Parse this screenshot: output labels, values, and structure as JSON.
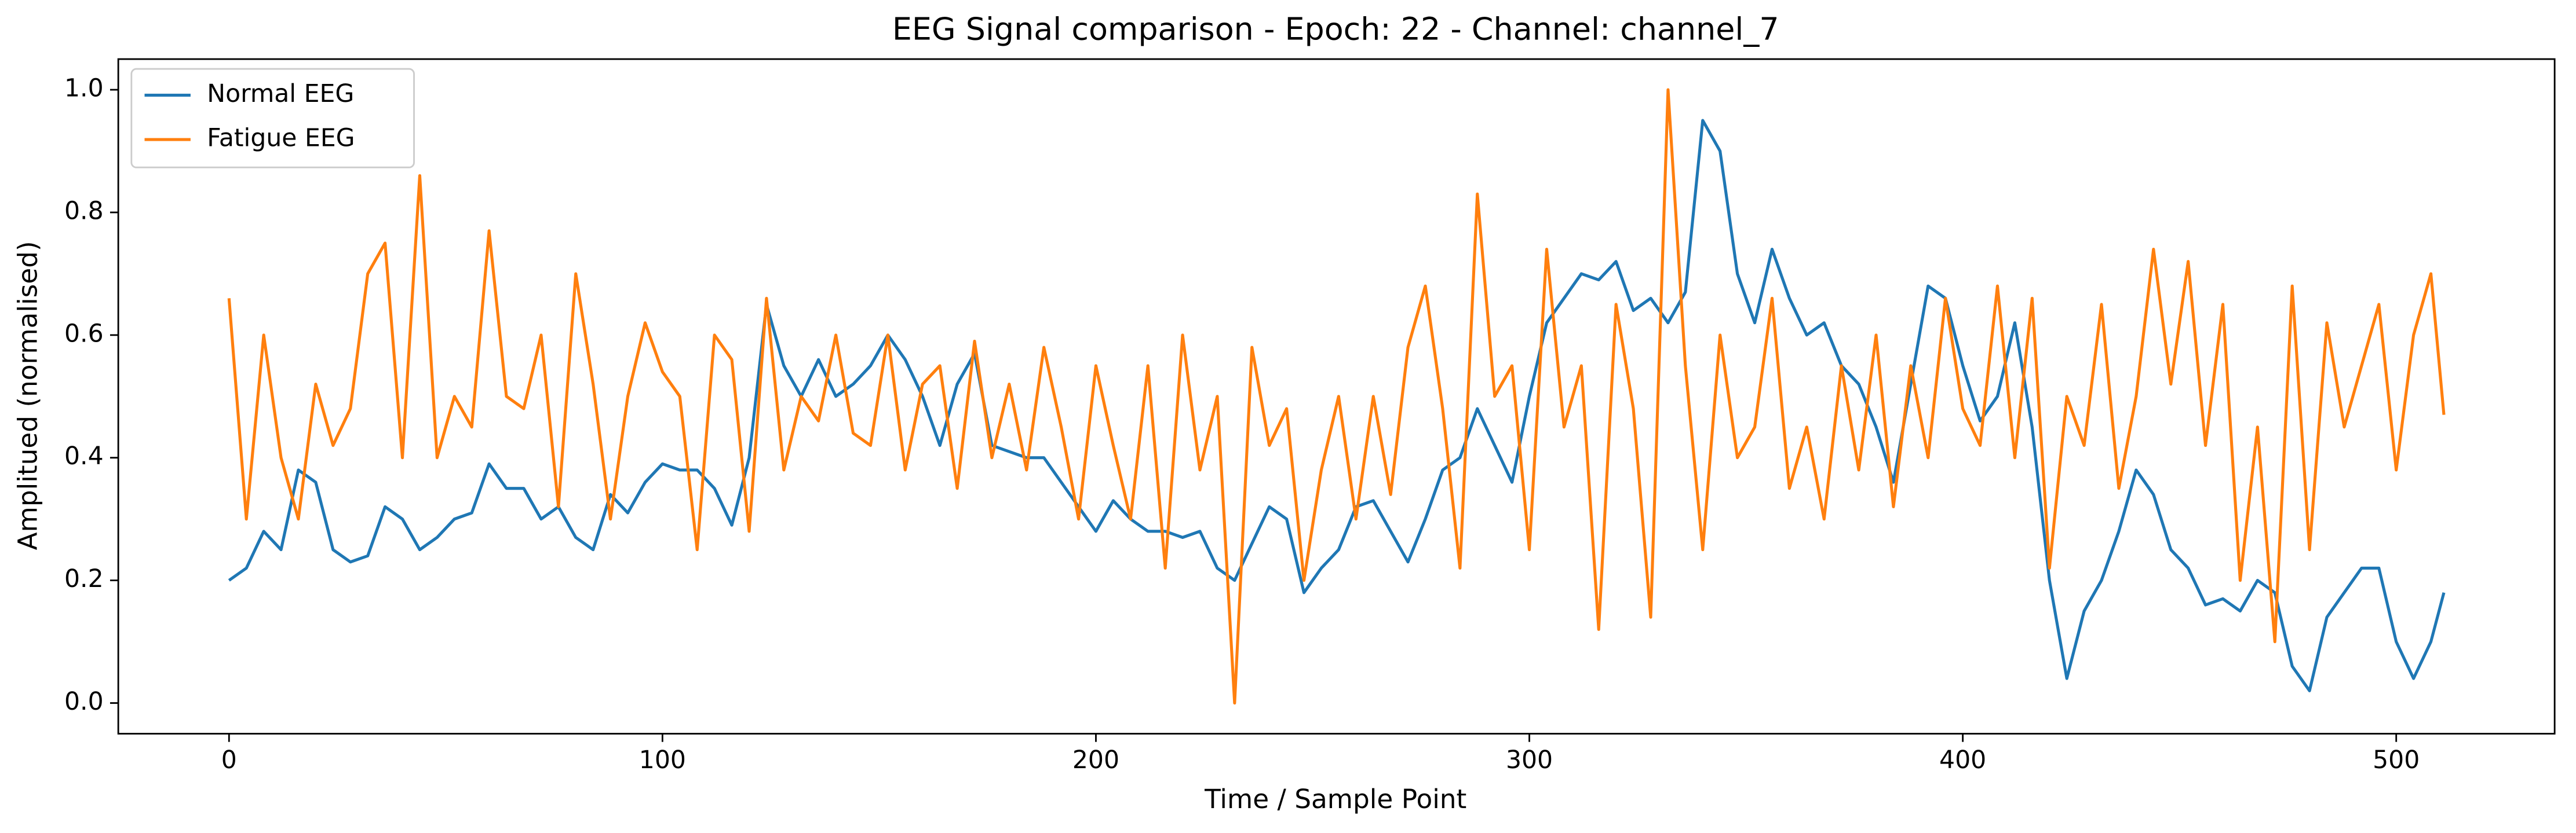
{
  "chart_data": {
    "type": "line",
    "title": "EEG Signal comparison - Epoch: 22 - Channel: channel_7",
    "x_label": "Time / Sample Point",
    "y_label": "Amplitued (normalised)",
    "x": [
      0,
      4,
      8,
      12,
      16,
      20,
      24,
      28,
      32,
      36,
      40,
      44,
      48,
      52,
      56,
      60,
      64,
      68,
      72,
      76,
      80,
      84,
      88,
      92,
      96,
      100,
      104,
      108,
      112,
      116,
      120,
      124,
      128,
      132,
      136,
      140,
      144,
      148,
      152,
      156,
      160,
      164,
      168,
      172,
      176,
      180,
      184,
      188,
      192,
      196,
      200,
      204,
      208,
      212,
      216,
      220,
      224,
      228,
      232,
      236,
      240,
      244,
      248,
      252,
      256,
      260,
      264,
      268,
      272,
      276,
      280,
      284,
      288,
      292,
      296,
      300,
      304,
      308,
      312,
      316,
      320,
      324,
      328,
      332,
      336,
      340,
      344,
      348,
      352,
      356,
      360,
      364,
      368,
      372,
      376,
      380,
      384,
      388,
      392,
      396,
      400,
      404,
      408,
      412,
      416,
      420,
      424,
      428,
      432,
      436,
      440,
      444,
      448,
      452,
      456,
      460,
      464,
      468,
      472,
      476,
      480,
      484,
      488,
      492,
      496,
      500,
      504,
      508,
      511
    ],
    "series": [
      {
        "name": "Normal EEG",
        "color": "#1f77b4",
        "values": [
          0.2,
          0.22,
          0.28,
          0.25,
          0.38,
          0.36,
          0.25,
          0.23,
          0.24,
          0.32,
          0.3,
          0.25,
          0.27,
          0.3,
          0.31,
          0.39,
          0.35,
          0.35,
          0.3,
          0.32,
          0.27,
          0.25,
          0.34,
          0.31,
          0.36,
          0.39,
          0.38,
          0.38,
          0.35,
          0.29,
          0.4,
          0.65,
          0.55,
          0.5,
          0.56,
          0.5,
          0.52,
          0.55,
          0.6,
          0.56,
          0.5,
          0.42,
          0.52,
          0.57,
          0.42,
          0.41,
          0.4,
          0.4,
          0.36,
          0.32,
          0.28,
          0.33,
          0.3,
          0.28,
          0.28,
          0.27,
          0.28,
          0.22,
          0.2,
          0.26,
          0.32,
          0.3,
          0.18,
          0.22,
          0.25,
          0.32,
          0.33,
          0.28,
          0.23,
          0.3,
          0.38,
          0.4,
          0.48,
          0.42,
          0.36,
          0.5,
          0.62,
          0.66,
          0.7,
          0.69,
          0.72,
          0.64,
          0.66,
          0.62,
          0.67,
          0.95,
          0.9,
          0.7,
          0.62,
          0.74,
          0.66,
          0.6,
          0.62,
          0.55,
          0.52,
          0.45,
          0.36,
          0.52,
          0.68,
          0.66,
          0.55,
          0.46,
          0.5,
          0.62,
          0.45,
          0.2,
          0.04,
          0.15,
          0.2,
          0.28,
          0.38,
          0.34,
          0.25,
          0.22,
          0.16,
          0.17,
          0.15,
          0.2,
          0.18,
          0.06,
          0.02,
          0.14,
          0.18,
          0.22,
          0.22,
          0.1,
          0.04,
          0.1,
          0.18
        ]
      },
      {
        "name": "Fatigue EEG",
        "color": "#ff7f0e",
        "values": [
          0.66,
          0.3,
          0.6,
          0.4,
          0.3,
          0.52,
          0.42,
          0.48,
          0.7,
          0.75,
          0.4,
          0.86,
          0.4,
          0.5,
          0.45,
          0.77,
          0.5,
          0.48,
          0.6,
          0.32,
          0.7,
          0.52,
          0.3,
          0.5,
          0.62,
          0.54,
          0.5,
          0.25,
          0.6,
          0.56,
          0.28,
          0.66,
          0.38,
          0.5,
          0.46,
          0.6,
          0.44,
          0.42,
          0.6,
          0.38,
          0.52,
          0.55,
          0.35,
          0.59,
          0.4,
          0.52,
          0.38,
          0.58,
          0.45,
          0.3,
          0.55,
          0.42,
          0.3,
          0.55,
          0.22,
          0.6,
          0.38,
          0.5,
          0.0,
          0.58,
          0.42,
          0.48,
          0.2,
          0.38,
          0.5,
          0.3,
          0.5,
          0.34,
          0.58,
          0.68,
          0.48,
          0.22,
          0.83,
          0.5,
          0.55,
          0.25,
          0.74,
          0.45,
          0.55,
          0.12,
          0.65,
          0.48,
          0.14,
          1.0,
          0.55,
          0.25,
          0.6,
          0.4,
          0.45,
          0.66,
          0.35,
          0.45,
          0.3,
          0.55,
          0.38,
          0.6,
          0.32,
          0.55,
          0.4,
          0.66,
          0.48,
          0.42,
          0.68,
          0.4,
          0.66,
          0.22,
          0.5,
          0.42,
          0.65,
          0.35,
          0.5,
          0.74,
          0.52,
          0.72,
          0.42,
          0.65,
          0.2,
          0.45,
          0.1,
          0.68,
          0.25,
          0.62,
          0.45,
          0.55,
          0.65,
          0.38,
          0.6,
          0.7,
          0.47
        ]
      }
    ],
    "xlim": [
      -25.55,
      536.55
    ],
    "ylim": [
      -0.05,
      1.05
    ],
    "xticks": [
      0,
      100,
      200,
      300,
      400,
      500
    ],
    "yticks": [
      {
        "value": 0,
        "label": "0.0"
      },
      0.2,
      0.4,
      0.6,
      0.8,
      {
        "value": 1,
        "label": "1.0"
      }
    ],
    "legend": "upper left",
    "grid": false
  }
}
